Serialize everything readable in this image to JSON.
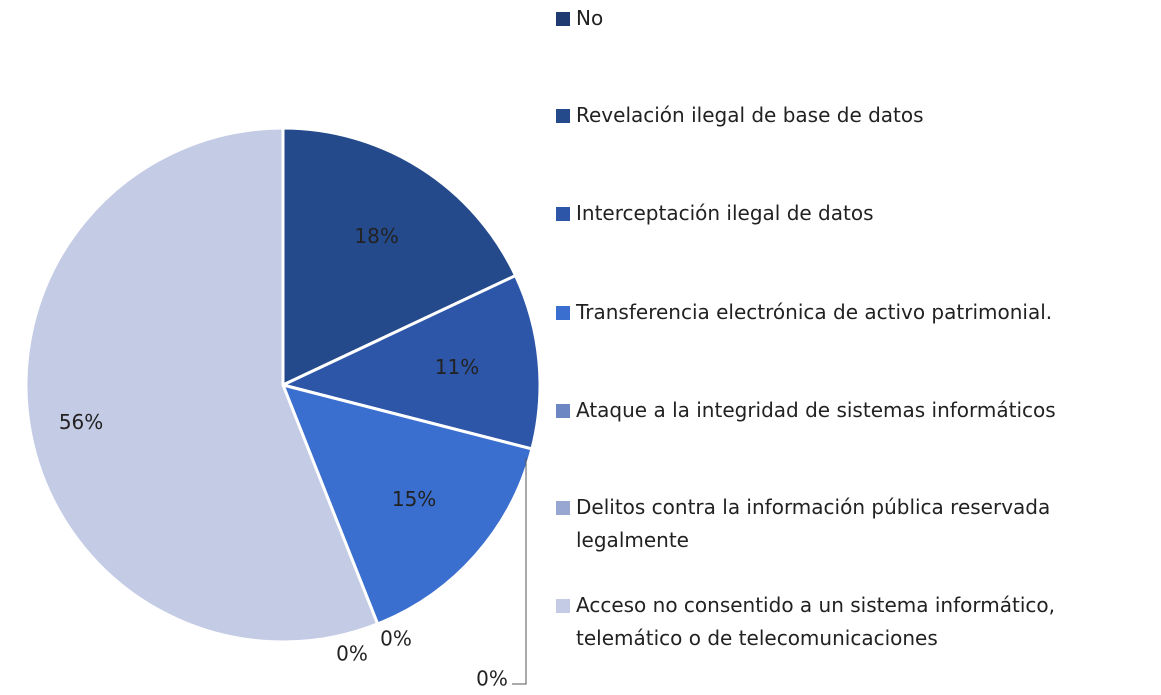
{
  "chart_data": {
    "type": "pie",
    "categories": [
      "No",
      "Revelación ilegal de base de datos",
      "Interceptación ilegal de datos",
      "Transferencia electrónica de activo patrimonial.",
      "Ataque a la integridad de sistemas informáticos",
      "Delitos contra la información pública reservada legalmente",
      "Acceso no consentido a un sistema informático, telemático o de telecomunicaciones"
    ],
    "values": [
      0,
      18,
      11,
      15,
      0,
      0,
      56
    ],
    "value_labels": [
      "0%",
      "18%",
      "11%",
      "15%",
      "0%",
      "0%",
      "56%"
    ],
    "colors": [
      "#1f3a70",
      "#254a8c",
      "#2d56a8",
      "#3b6fcf",
      "#6b86c2",
      "#97a7d2",
      "#c3cbe5"
    ]
  }
}
